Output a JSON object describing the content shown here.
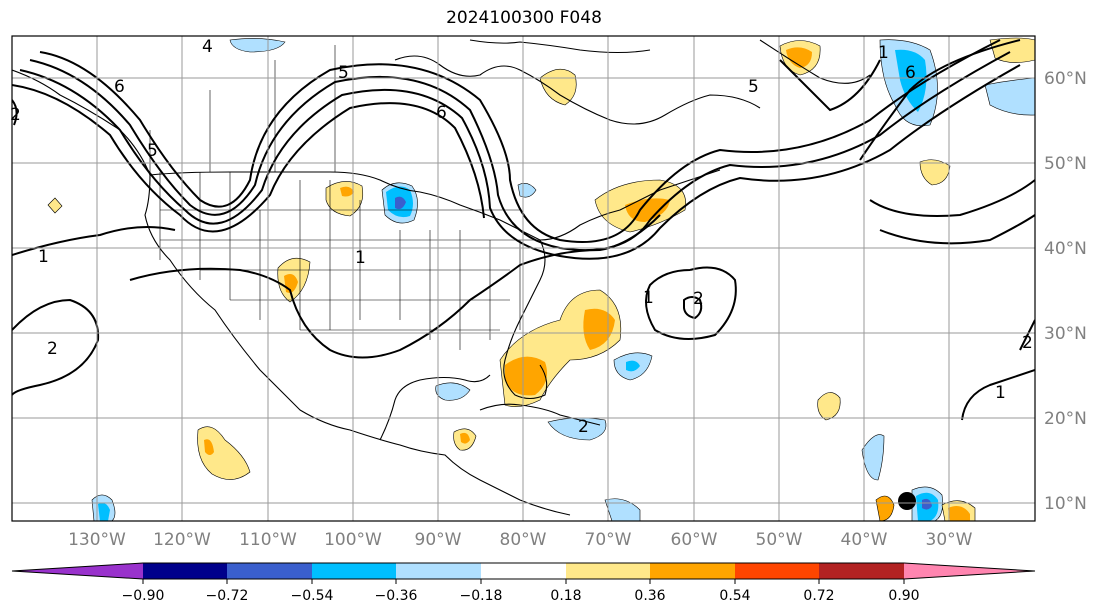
{
  "title": "2024100300 F048",
  "map": {
    "projection": "cylindrical",
    "lon_range": [
      -140,
      -20
    ],
    "lat_range": [
      8,
      65
    ],
    "lat_labels": [
      "60°N",
      "50°N",
      "40°N",
      "30°N",
      "20°N",
      "10°N"
    ],
    "lon_labels": [
      "130°W",
      "120°W",
      "110°W",
      "100°W",
      "90°W",
      "80°W",
      "70°W",
      "60°W",
      "50°W",
      "40°W",
      "30°W"
    ],
    "contour_labels": [
      "4",
      "5",
      "6",
      "5",
      "6",
      "5",
      "1",
      "2",
      "2",
      "1",
      "1",
      "2",
      "1",
      "2",
      "2",
      "1",
      "6"
    ]
  },
  "colorbar": {
    "tick_labels": [
      "−0.90",
      "−0.72",
      "−0.54",
      "−0.36",
      "−0.18",
      "0.18",
      "0.36",
      "0.54",
      "0.72",
      "0.90"
    ],
    "colors": {
      "lt_-0.90": "#9932cc",
      "-0.90_-0.72": "#00008b",
      "-0.72_-0.54": "#3a5fcd",
      "-0.54_-0.36": "#00bfff",
      "-0.36_-0.18": "#b0e0ff",
      "-0.18_0.18": "#ffffff",
      "0.18_0.36": "#ffe88a",
      "0.36_0.54": "#ffa500",
      "0.54_0.72": "#ff4500",
      "0.72_0.90": "#b22222",
      "gt_0.90": "#ff85b0"
    }
  }
}
